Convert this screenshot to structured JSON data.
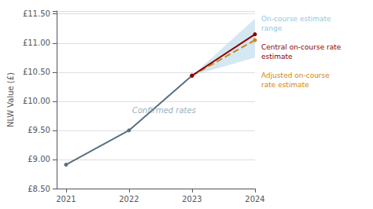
{
  "chart_data": {
    "type": "line",
    "ylabel": "NLW Value (£)",
    "xlim": [
      2020.85,
      2024.0
    ],
    "xticks": [
      2021,
      2022,
      2023,
      2024
    ],
    "ylim": [
      8.5,
      11.55
    ],
    "yticks": [
      {
        "value": 8.5,
        "label": "£8.50"
      },
      {
        "value": 9.0,
        "label": "£9.00"
      },
      {
        "value": 9.5,
        "label": "£9.50"
      },
      {
        "value": 10.0,
        "label": "£10.00"
      },
      {
        "value": 10.5,
        "label": "£10.50"
      },
      {
        "value": 11.0,
        "label": "£11.00"
      },
      {
        "value": 11.5,
        "label": "£11.50"
      }
    ],
    "grid": true,
    "series": [
      {
        "type": "band",
        "color": "#bddcec",
        "x": [
          2023,
          2024
        ],
        "lower": [
          10.44,
          10.75
        ],
        "upper": [
          10.44,
          11.42
        ]
      },
      {
        "type": "line",
        "color": "#5a7080",
        "marker": "circle",
        "x": [
          2021,
          2022,
          2023
        ],
        "values": [
          8.91,
          9.5,
          10.44
        ]
      },
      {
        "type": "line",
        "color": "#d4860a",
        "marker": "circle",
        "line_style": "dashed",
        "x": [
          2023,
          2024
        ],
        "values": [
          10.44,
          11.05
        ]
      },
      {
        "type": "line",
        "color": "#8b0000",
        "marker": "circle",
        "x": [
          2023,
          2024
        ],
        "values": [
          10.44,
          11.15
        ]
      }
    ],
    "annotations": [
      {
        "text": "Confirmed rates",
        "x": 2022.05,
        "y": 9.78,
        "color": "#7a9aaa"
      },
      {
        "lines": [
          "On-course estimate",
          "range"
        ],
        "color": "#90c8e0"
      },
      {
        "lines": [
          "Central on-course rate",
          "estimate"
        ],
        "color": "#8b0000"
      },
      {
        "lines": [
          "Adjusted on-course",
          "rate estimate"
        ],
        "color": "#d4860a"
      }
    ]
  }
}
